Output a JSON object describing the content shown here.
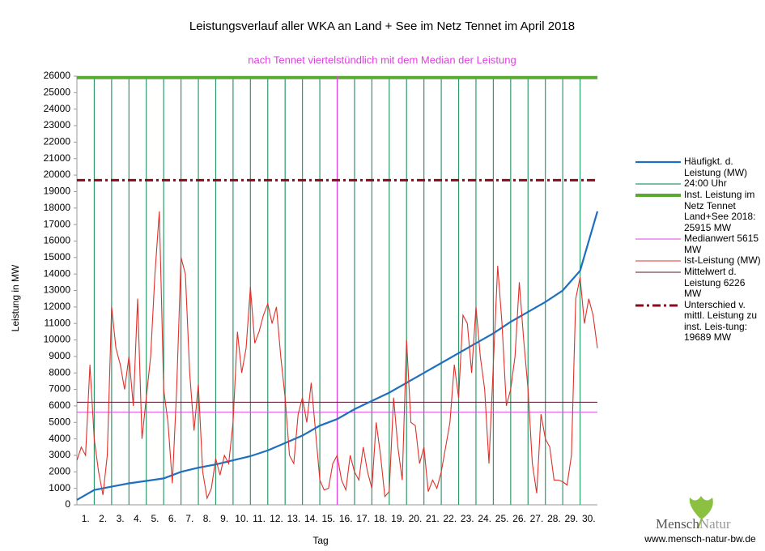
{
  "chart_data": {
    "type": "line",
    "title": "Leistungsverlauf aller WKA an Land + See im Netz Tennet im April 2018",
    "subtitle": "nach Tennet viertelstündlich mit dem Median der Leistung",
    "ylabel": "Leistung in MW",
    "xlabel": "Tag",
    "categories": [
      "1.",
      "2.",
      "3.",
      "4.",
      "5.",
      "6.",
      "7.",
      "8.",
      "9.",
      "10.",
      "11.",
      "12.",
      "13.",
      "14.",
      "15.",
      "16.",
      "17.",
      "18.",
      "19.",
      "20.",
      "21.",
      "22.",
      "23.",
      "24.",
      "25.",
      "26.",
      "27.",
      "28.",
      "29.",
      "30."
    ],
    "xlim": [
      0,
      30
    ],
    "ylim": [
      0,
      26000
    ],
    "yticks": [
      0,
      1000,
      2000,
      3000,
      4000,
      5000,
      6000,
      7000,
      8000,
      9000,
      10000,
      11000,
      12000,
      13000,
      14000,
      15000,
      16000,
      17000,
      18000,
      19000,
      20000,
      21000,
      22000,
      23000,
      24000,
      25000,
      26000
    ],
    "grid": false,
    "series": [
      {
        "name": "Häufigkt. d. Leistung (MW)",
        "kind": "line",
        "color": "#1f6fc0",
        "width": 2.2,
        "x": [
          0,
          1,
          2,
          3,
          4,
          5,
          6,
          7,
          8,
          9,
          10,
          11,
          12,
          13,
          14,
          15,
          16,
          17,
          18,
          19,
          20,
          21,
          22,
          23,
          24,
          25,
          26,
          27,
          28,
          29,
          30
        ],
        "values": [
          300,
          900,
          1100,
          1300,
          1450,
          1600,
          2000,
          2250,
          2450,
          2700,
          2950,
          3300,
          3750,
          4200,
          4800,
          5200,
          5800,
          6300,
          6800,
          7400,
          8000,
          8600,
          9200,
          9800,
          10400,
          11100,
          11700,
          12300,
          13000,
          14200,
          17800
        ]
      },
      {
        "name": "24:00 Uhr",
        "kind": "vline",
        "color": "#2f9a6c",
        "width": 1.2,
        "x": [
          1,
          2,
          3,
          4,
          5,
          6,
          7,
          8,
          9,
          10,
          11,
          12,
          13,
          14,
          15,
          16,
          17,
          18,
          19,
          20,
          21,
          22,
          23,
          24,
          25,
          26,
          27,
          28,
          29
        ]
      },
      {
        "name": "Inst. Leistung im Netz Tennet Land+See 2018: 25915 MW",
        "kind": "hline",
        "color": "#5aaa32",
        "width": 4,
        "value": 25915
      },
      {
        "name": "Medianwert 5615 MW",
        "kind": "hline",
        "color": "#e040e0",
        "width": 1,
        "value": 5615,
        "vline_x": 15
      },
      {
        "name": "Ist-Leistung (MW)",
        "kind": "line",
        "color": "#e0302a",
        "width": 1.1,
        "x": [
          0,
          0.25,
          0.5,
          0.75,
          1,
          1.25,
          1.5,
          1.75,
          2,
          2.25,
          2.5,
          2.75,
          3,
          3.25,
          3.5,
          3.75,
          4,
          4.25,
          4.5,
          4.75,
          5,
          5.25,
          5.5,
          5.75,
          6,
          6.25,
          6.5,
          6.75,
          7,
          7.25,
          7.5,
          7.75,
          8,
          8.25,
          8.5,
          8.75,
          9,
          9.25,
          9.5,
          9.75,
          10,
          10.25,
          10.5,
          10.75,
          11,
          11.25,
          11.5,
          11.75,
          12,
          12.25,
          12.5,
          12.75,
          13,
          13.25,
          13.5,
          13.75,
          14,
          14.25,
          14.5,
          14.75,
          15,
          15.25,
          15.5,
          15.75,
          16,
          16.25,
          16.5,
          16.75,
          17,
          17.25,
          17.5,
          17.75,
          18,
          18.25,
          18.5,
          18.75,
          19,
          19.25,
          19.5,
          19.75,
          20,
          20.25,
          20.5,
          20.75,
          21,
          21.25,
          21.5,
          21.75,
          22,
          22.25,
          22.5,
          22.75,
          23,
          23.25,
          23.5,
          23.75,
          24,
          24.25,
          24.5,
          24.75,
          25,
          25.25,
          25.5,
          25.75,
          26,
          26.25,
          26.5,
          26.75,
          27,
          27.25,
          27.5,
          27.75,
          28,
          28.25,
          28.5,
          28.75,
          29,
          29.25,
          29.5,
          29.75,
          30
        ],
        "values": [
          2700,
          3500,
          3000,
          8500,
          4000,
          2000,
          600,
          3000,
          12000,
          9500,
          8500,
          7000,
          9000,
          6000,
          12500,
          4000,
          6500,
          9000,
          14000,
          17800,
          7000,
          5000,
          1300,
          7000,
          15000,
          14000,
          8000,
          4500,
          7300,
          2000,
          400,
          1000,
          2800,
          1800,
          3000,
          2500,
          5000,
          10500,
          8000,
          9500,
          13200,
          9800,
          10500,
          11500,
          12200,
          11000,
          12000,
          9000,
          6500,
          3000,
          2500,
          5500,
          6500,
          5000,
          7400,
          4500,
          1500,
          900,
          1000,
          2500,
          3000,
          1500,
          900,
          3000,
          2000,
          1500,
          3500,
          2000,
          1000,
          5000,
          3000,
          500,
          800,
          6500,
          3500,
          1500,
          10000,
          5000,
          4800,
          2500,
          3500,
          800,
          1500,
          1000,
          2000,
          3500,
          5000,
          8500,
          6500,
          11500,
          11000,
          8000,
          12000,
          9000,
          7000,
          2500,
          8500,
          14500,
          11000,
          6000,
          7000,
          9000,
          13500,
          10000,
          7000,
          2500,
          700,
          5500,
          4000,
          3500,
          1500,
          1500,
          1400,
          1200,
          3000,
          12500,
          13800,
          11000,
          12500,
          11500,
          9500
        ]
      },
      {
        "name": "Mittelwert d. Leistung 6226 MW",
        "kind": "hline",
        "color": "#5a1030",
        "width": 1,
        "value": 6226
      },
      {
        "name": "Unterschied v. mittl. Leistung zu inst. Leis-tung: 19689 MW",
        "kind": "hline",
        "color": "#8b0a1e",
        "width": 3,
        "dash": "10 4 3 4",
        "value": 19689
      }
    ]
  },
  "footer": {
    "brand": [
      "Mensch",
      "Natur"
    ],
    "url": "www.mensch-natur-bw.de"
  }
}
